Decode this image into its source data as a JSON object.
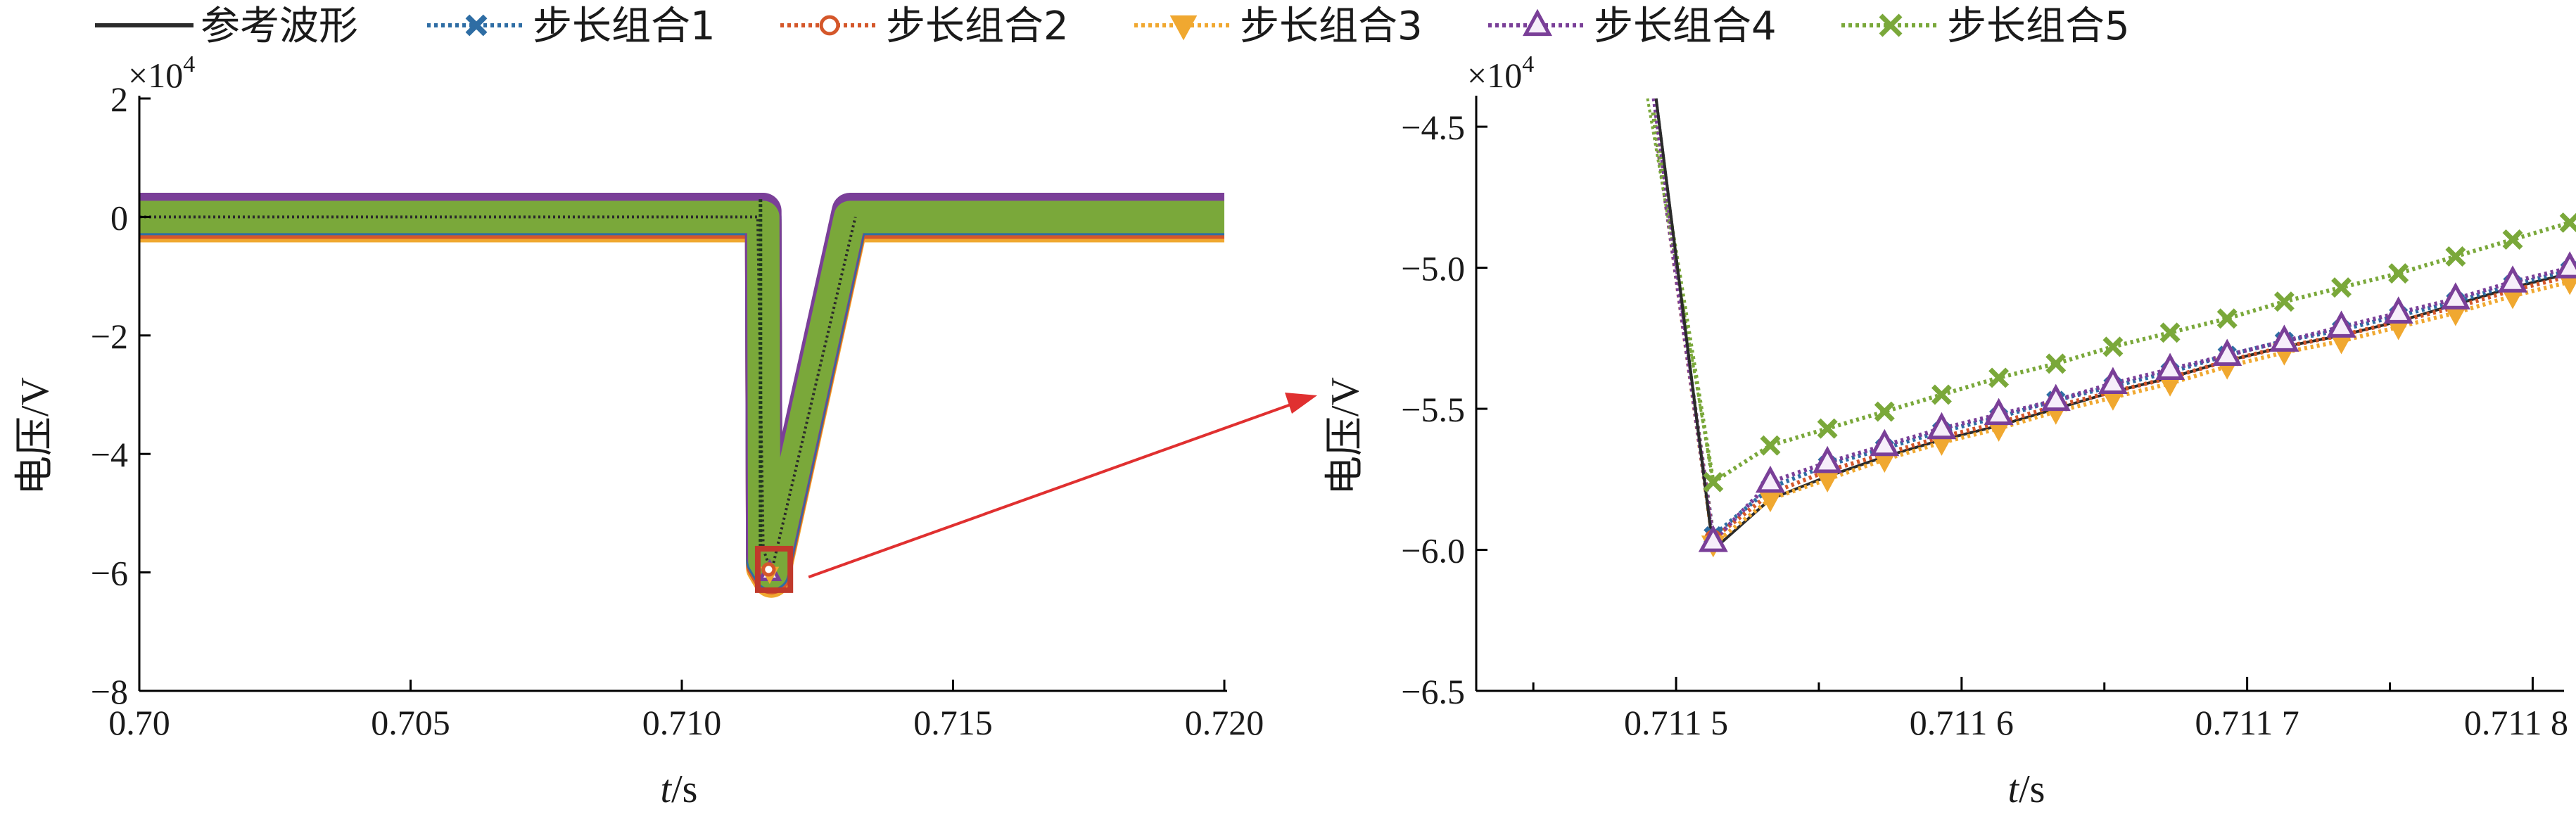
{
  "colors": {
    "axis": "#000000",
    "reference": "#2b2b2b",
    "s1": "#2e6da4",
    "s2": "#d4572a",
    "s3": "#f0a830",
    "s4": "#7a3f98",
    "s5": "#7aa83a",
    "arrow": "#e03030",
    "zoom_box": "#c0392b"
  },
  "legend": [
    {
      "key": "ref",
      "label": "参考波形",
      "marker": "none",
      "dotted": false
    },
    {
      "key": "s1",
      "label": "步长组合1",
      "marker": "x-small",
      "dotted": true
    },
    {
      "key": "s2",
      "label": "步长组合2",
      "marker": "circle",
      "dotted": true
    },
    {
      "key": "s3",
      "label": "步长组合3",
      "marker": "triangle-down",
      "dotted": true
    },
    {
      "key": "s4",
      "label": "步长组合4",
      "marker": "triangle-up",
      "dotted": true
    },
    {
      "key": "s5",
      "label": "步长组合5",
      "marker": "x",
      "dotted": true
    }
  ],
  "chart_data": [
    {
      "type": "line",
      "xlabel_italic": "t",
      "xlabel_unit": "/s",
      "ylabel": "电压/V",
      "y_multiplier_base": "×10",
      "y_multiplier_exp": "4",
      "xlim": [
        0.7,
        0.72
      ],
      "ylim": [
        -8,
        2
      ],
      "xticks": [
        0.7,
        0.705,
        0.71,
        0.715,
        0.72
      ],
      "xtick_labels": [
        "0.70",
        "0.705",
        "0.710",
        "0.715",
        "0.720"
      ],
      "yticks": [
        2,
        0,
        -2,
        -4,
        -6,
        -8
      ],
      "ytick_labels": [
        "2",
        "0",
        "−2",
        "−4",
        "−6",
        "−8"
      ],
      "zoom_region": {
        "x": [
          0.7114,
          0.712
        ],
        "y": [
          -6.3,
          -5.6
        ]
      },
      "band_series": [
        {
          "key": "s3",
          "offset": -0.12
        },
        {
          "key": "s2",
          "offset": -0.06
        },
        {
          "key": "s1",
          "offset": 0.0
        },
        {
          "key": "s4",
          "offset": 0.1
        },
        {
          "key": "s5",
          "offset": 0.0
        }
      ],
      "waveform": {
        "x": [
          0.7,
          0.7115,
          0.71152,
          0.71165,
          0.7131,
          0.72
        ],
        "y": [
          0.0,
          0.0,
          -5.8,
          -6.0,
          0.0,
          0.0
        ]
      },
      "reference_path": {
        "x": [
          0.7,
          0.7114,
          0.7115,
          0.71165,
          0.7132
        ],
        "y": [
          0.0,
          0.0,
          -5.6,
          -6.0,
          0.0
        ]
      }
    },
    {
      "type": "line",
      "xlabel_italic": "t",
      "xlabel_unit": "/s",
      "ylabel": "电压/V",
      "y_multiplier_base": "×10",
      "y_multiplier_exp": "4",
      "xlim": [
        0.71143,
        0.71181
      ],
      "ylim": [
        -6.5,
        -4.4
      ],
      "xticks": [
        0.71145,
        0.71155,
        0.71165,
        0.71175,
        0.71185
      ],
      "xticks_show": [
        0.7115,
        0.7116,
        0.7117,
        0.7118
      ],
      "xtick_labels": [
        "0.711 5",
        "0.711 6",
        "0.711 7",
        "0.711 8"
      ],
      "yticks": [
        -4.5,
        -5.0,
        -5.5,
        -6.0,
        -6.5
      ],
      "ytick_labels": [
        "−4.5",
        "−5.0",
        "−5.5",
        "−6.0",
        "−6.5"
      ],
      "x": [
        0.711513,
        0.711533,
        0.711553,
        0.711573,
        0.711593,
        0.711613,
        0.711633,
        0.711653,
        0.711673,
        0.711693,
        0.711713,
        0.711733,
        0.711753,
        0.711773,
        0.711793,
        0.711813
      ],
      "series": [
        {
          "key": "ref",
          "x": [
            0.711493,
            0.711513,
            0.711533,
            0.711553,
            0.711573,
            0.711593,
            0.711613,
            0.711633,
            0.711653,
            0.711673,
            0.711693,
            0.711713,
            0.711733,
            0.711753,
            0.711773,
            0.711793,
            0.711813
          ],
          "values": [
            -4.4,
            -6.0,
            -5.82,
            -5.74,
            -5.67,
            -5.61,
            -5.56,
            -5.5,
            -5.44,
            -5.39,
            -5.33,
            -5.28,
            -5.24,
            -5.19,
            -5.13,
            -5.07,
            -5.02
          ]
        },
        {
          "key": "s1",
          "values": [
            -5.95,
            -5.78,
            -5.7,
            -5.64,
            -5.58,
            -5.53,
            -5.47,
            -5.42,
            -5.37,
            -5.31,
            -5.26,
            -5.22,
            -5.17,
            -5.12,
            -5.06,
            -5.01
          ]
        },
        {
          "key": "s2",
          "values": [
            -5.96,
            -5.8,
            -5.72,
            -5.66,
            -5.6,
            -5.55,
            -5.49,
            -5.44,
            -5.39,
            -5.33,
            -5.28,
            -5.24,
            -5.19,
            -5.14,
            -5.08,
            -5.03
          ]
        },
        {
          "key": "s3",
          "values": [
            -5.98,
            -5.82,
            -5.75,
            -5.68,
            -5.62,
            -5.57,
            -5.51,
            -5.46,
            -5.41,
            -5.35,
            -5.3,
            -5.26,
            -5.21,
            -5.16,
            -5.1,
            -5.05
          ]
        },
        {
          "key": "s4",
          "values": [
            -5.97,
            -5.76,
            -5.69,
            -5.63,
            -5.57,
            -5.52,
            -5.47,
            -5.41,
            -5.36,
            -5.31,
            -5.26,
            -5.21,
            -5.16,
            -5.11,
            -5.05,
            -5.0
          ]
        },
        {
          "key": "s5",
          "values": [
            -5.76,
            -5.63,
            -5.57,
            -5.51,
            -5.45,
            -5.39,
            -5.34,
            -5.28,
            -5.23,
            -5.18,
            -5.12,
            -5.07,
            -5.02,
            -4.96,
            -4.9,
            -4.84
          ]
        }
      ]
    }
  ]
}
